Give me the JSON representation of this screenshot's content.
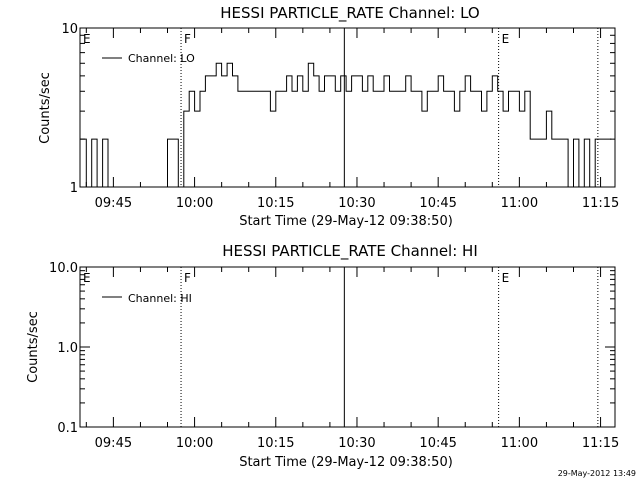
{
  "stamp": "29-May-2012 13:49",
  "chart_data": [
    {
      "type": "line",
      "title": "HESSI PARTICLE_RATE Channel: LO",
      "xlabel": "Start Time (29-May-12 09:38:50)",
      "ylabel": "Counts/sec",
      "yscale": "log",
      "xlim": [
        "09:38:50",
        "11:17:40"
      ],
      "ylim": [
        1,
        10
      ],
      "x_ticks": [
        "09:45",
        "10:00",
        "10:15",
        "10:30",
        "10:45",
        "11:00",
        "11:15"
      ],
      "y_ticks": [
        "1",
        "10"
      ],
      "legend": {
        "label": "Channel: LO",
        "placement": "top-left"
      },
      "markers": [
        {
          "label": "E",
          "time": "09:38:50",
          "style": "none"
        },
        {
          "label": "F",
          "time": "09:57:30",
          "style": "dotted"
        },
        {
          "label": "",
          "time": "10:27:40",
          "style": "solid"
        },
        {
          "label": "E",
          "time": "10:56:10",
          "style": "dotted"
        },
        {
          "label": "",
          "time": "11:14:30",
          "style": "dotted"
        }
      ],
      "series": [
        {
          "name": "Channel: LO",
          "x": [
            "09:38:50",
            "09:40:00",
            "09:41:00",
            "09:42:00",
            "09:43:00",
            "09:44:00",
            "09:45:00",
            "09:46:00",
            "09:47:00",
            "09:48:00",
            "09:49:00",
            "09:50:00",
            "09:51:00",
            "09:52:00",
            "09:53:00",
            "09:54:00",
            "09:55:00",
            "09:56:00",
            "09:57:00",
            "09:58:00",
            "09:59:00",
            "10:00:00",
            "10:01:00",
            "10:02:00",
            "10:03:00",
            "10:04:00",
            "10:05:00",
            "10:06:00",
            "10:07:00",
            "10:08:00",
            "10:09:00",
            "10:10:00",
            "10:11:00",
            "10:12:00",
            "10:13:00",
            "10:14:00",
            "10:15:00",
            "10:16:00",
            "10:17:00",
            "10:18:00",
            "10:19:00",
            "10:20:00",
            "10:21:00",
            "10:22:00",
            "10:23:00",
            "10:24:00",
            "10:25:00",
            "10:26:00",
            "10:27:00",
            "10:28:00",
            "10:29:00",
            "10:30:00",
            "10:31:00",
            "10:32:00",
            "10:33:00",
            "10:34:00",
            "10:35:00",
            "10:36:00",
            "10:37:00",
            "10:38:00",
            "10:39:00",
            "10:40:00",
            "10:41:00",
            "10:42:00",
            "10:43:00",
            "10:44:00",
            "10:45:00",
            "10:46:00",
            "10:47:00",
            "10:48:00",
            "10:49:00",
            "10:50:00",
            "10:51:00",
            "10:52:00",
            "10:53:00",
            "10:54:00",
            "10:55:00",
            "10:56:00",
            "10:57:00",
            "10:58:00",
            "10:59:00",
            "11:00:00",
            "11:01:00",
            "11:02:00",
            "11:03:00",
            "11:04:00",
            "11:05:00",
            "11:06:00",
            "11:07:00",
            "11:08:00",
            "11:09:00",
            "11:10:00",
            "11:11:00",
            "11:12:00",
            "11:13:00",
            "11:14:00",
            "11:15:00",
            "11:16:00",
            "11:17:00"
          ],
          "y": [
            2,
            1,
            2,
            1,
            2,
            1,
            1,
            1,
            1,
            1,
            1,
            1,
            1,
            1,
            1,
            1,
            2,
            2,
            1,
            3,
            4,
            3,
            4,
            5,
            5,
            6,
            5,
            6,
            5,
            4,
            4,
            4,
            4,
            4,
            4,
            3,
            4,
            4,
            5,
            4,
            5,
            4,
            6,
            5,
            4,
            5,
            5,
            4,
            5,
            4,
            5,
            5,
            4,
            5,
            4,
            4,
            5,
            4,
            4,
            4,
            5,
            4,
            4,
            3,
            4,
            4,
            5,
            4,
            4,
            3,
            4,
            5,
            4,
            4,
            3,
            4,
            5,
            4,
            3,
            4,
            4,
            3,
            4,
            2,
            2,
            2,
            3,
            2,
            2,
            2,
            1,
            2,
            1,
            2,
            1,
            2,
            2,
            2,
            2
          ]
        }
      ]
    },
    {
      "type": "line",
      "title": "HESSI PARTICLE_RATE Channel: HI",
      "xlabel": "Start Time (29-May-12 09:38:50)",
      "ylabel": "Counts/sec",
      "yscale": "log",
      "xlim": [
        "09:38:50",
        "11:17:40"
      ],
      "ylim": [
        0.1,
        10.0
      ],
      "x_ticks": [
        "09:45",
        "10:00",
        "10:15",
        "10:30",
        "10:45",
        "11:00",
        "11:15"
      ],
      "y_ticks": [
        "0.1",
        "1.0",
        "10.0"
      ],
      "legend": {
        "label": "Channel: HI",
        "placement": "top-left"
      },
      "markers": [
        {
          "label": "E",
          "time": "09:38:50",
          "style": "none"
        },
        {
          "label": "F",
          "time": "09:57:30",
          "style": "dotted"
        },
        {
          "label": "",
          "time": "10:27:40",
          "style": "solid"
        },
        {
          "label": "E",
          "time": "10:56:10",
          "style": "dotted"
        },
        {
          "label": "",
          "time": "11:14:30",
          "style": "dotted"
        }
      ],
      "series": [
        {
          "name": "Channel: HI",
          "x": [],
          "y": []
        }
      ]
    }
  ]
}
